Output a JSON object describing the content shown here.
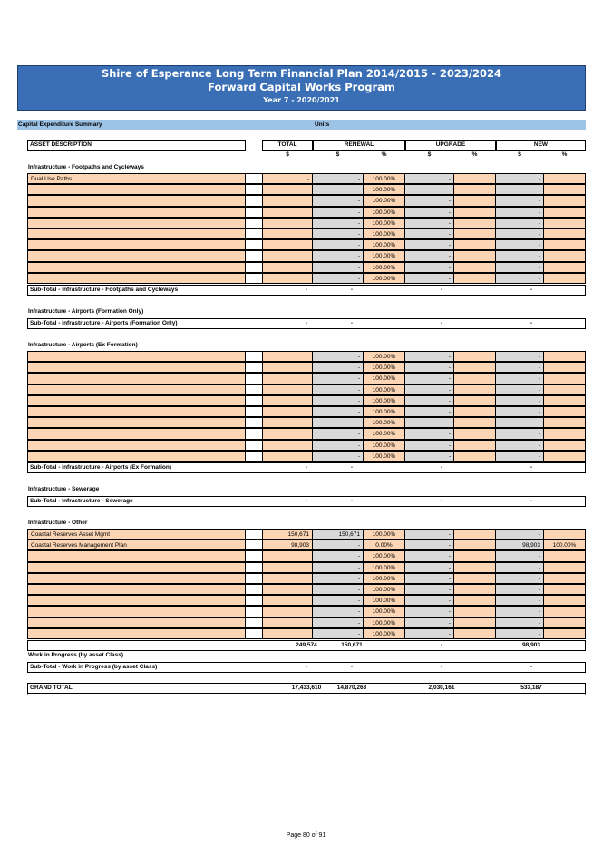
{
  "header": {
    "title": "Shire of Esperance Long Term Financial Plan 2014/2015 - 2023/2024",
    "subtitle": "Forward Capital Works Program",
    "year": "Year 7 - 2020/2021"
  },
  "capbar": {
    "label": "Capital Expenditure Summary",
    "units": "Units"
  },
  "columns": {
    "desc": "ASSET DESCRIPTION",
    "total": "TOTAL",
    "renewal": "RENEWAL",
    "upgrade": "UPGRADE",
    "new": "NEW",
    "dollar": "$",
    "pct": "%"
  },
  "sections": {
    "footpaths": {
      "title": "Infrastructure - Footpaths and Cycleways",
      "rows": [
        {
          "desc": "Dual Use Paths",
          "total": "-",
          "renewal": "-",
          "renewal_pct": "100.00%",
          "upgrade": "-",
          "upgrade_pct": "",
          "new": "-",
          "new_pct": ""
        },
        {
          "desc": "",
          "total": "",
          "renewal": "-",
          "renewal_pct": "100.00%",
          "upgrade": "-",
          "upgrade_pct": "",
          "new": "-",
          "new_pct": ""
        },
        {
          "desc": "",
          "total": "",
          "renewal": "-",
          "renewal_pct": "100.00%",
          "upgrade": "-",
          "upgrade_pct": "",
          "new": "-",
          "new_pct": ""
        },
        {
          "desc": "",
          "total": "",
          "renewal": "-",
          "renewal_pct": "100.00%",
          "upgrade": "-",
          "upgrade_pct": "",
          "new": "-",
          "new_pct": ""
        },
        {
          "desc": "",
          "total": "",
          "renewal": "-",
          "renewal_pct": "100.00%",
          "upgrade": "-",
          "upgrade_pct": "",
          "new": "-",
          "new_pct": ""
        },
        {
          "desc": "",
          "total": "",
          "renewal": "-",
          "renewal_pct": "100.00%",
          "upgrade": "-",
          "upgrade_pct": "",
          "new": "-",
          "new_pct": ""
        },
        {
          "desc": "",
          "total": "",
          "renewal": "-",
          "renewal_pct": "100.00%",
          "upgrade": "-",
          "upgrade_pct": "",
          "new": "-",
          "new_pct": ""
        },
        {
          "desc": "",
          "total": "",
          "renewal": "-",
          "renewal_pct": "100.00%",
          "upgrade": "-",
          "upgrade_pct": "",
          "new": "-",
          "new_pct": ""
        },
        {
          "desc": "",
          "total": "",
          "renewal": "-",
          "renewal_pct": "100.00%",
          "upgrade": "-",
          "upgrade_pct": "",
          "new": "-",
          "new_pct": ""
        },
        {
          "desc": "",
          "total": "",
          "renewal": "-",
          "renewal_pct": "100.00%",
          "upgrade": "-",
          "upgrade_pct": "",
          "new": "-",
          "new_pct": ""
        }
      ],
      "subtotal": {
        "label": "Sub-Total - Infrastructure - Footpaths and Cycleways",
        "total": "-",
        "renewal": "-",
        "upgrade": "-",
        "new": "-"
      }
    },
    "airports_formation": {
      "title": "Infrastructure - Airports (Formation Only)",
      "subtotal": {
        "label": "Sub-Total - Infrastructure - Airports (Formation Only)",
        "total": "-",
        "renewal": "-",
        "upgrade": "-",
        "new": "-"
      }
    },
    "airports_ex": {
      "title": "Infrastructure - Airports (Ex Formation)",
      "rows": [
        {
          "desc": "",
          "total": "",
          "renewal": "-",
          "renewal_pct": "100.00%",
          "upgrade": "-",
          "upgrade_pct": "",
          "new": "-",
          "new_pct": ""
        },
        {
          "desc": "",
          "total": "",
          "renewal": "-",
          "renewal_pct": "100.00%",
          "upgrade": "-",
          "upgrade_pct": "",
          "new": "-",
          "new_pct": ""
        },
        {
          "desc": "",
          "total": "",
          "renewal": "-",
          "renewal_pct": "100.00%",
          "upgrade": "-",
          "upgrade_pct": "",
          "new": "-",
          "new_pct": ""
        },
        {
          "desc": "",
          "total": "",
          "renewal": "-",
          "renewal_pct": "100.00%",
          "upgrade": "-",
          "upgrade_pct": "",
          "new": "-",
          "new_pct": ""
        },
        {
          "desc": "",
          "total": "",
          "renewal": "-",
          "renewal_pct": "100.00%",
          "upgrade": "-",
          "upgrade_pct": "",
          "new": "-",
          "new_pct": ""
        },
        {
          "desc": "",
          "total": "",
          "renewal": "-",
          "renewal_pct": "100.00%",
          "upgrade": "-",
          "upgrade_pct": "",
          "new": "-",
          "new_pct": ""
        },
        {
          "desc": "",
          "total": "",
          "renewal": "-",
          "renewal_pct": "100.00%",
          "upgrade": "-",
          "upgrade_pct": "",
          "new": "-",
          "new_pct": ""
        },
        {
          "desc": "",
          "total": "",
          "renewal": "-",
          "renewal_pct": "100.00%",
          "upgrade": "-",
          "upgrade_pct": "",
          "new": "-",
          "new_pct": ""
        },
        {
          "desc": "",
          "total": "",
          "renewal": "-",
          "renewal_pct": "100.00%",
          "upgrade": "-",
          "upgrade_pct": "",
          "new": "-",
          "new_pct": ""
        },
        {
          "desc": "",
          "total": "",
          "renewal": "-",
          "renewal_pct": "100.00%",
          "upgrade": "-",
          "upgrade_pct": "",
          "new": "-",
          "new_pct": ""
        }
      ],
      "subtotal": {
        "label": "Sub-Total - Infrastructure - Airports (Ex Formation)",
        "total": "-",
        "renewal": "-",
        "upgrade": "-",
        "new": "-"
      }
    },
    "sewerage": {
      "title": "Infrastructure - Sewerage",
      "subtotal": {
        "label": "Sub-Total - Infrastructure - Sewerage",
        "total": "-",
        "renewal": "-",
        "upgrade": "-",
        "new": "-"
      }
    },
    "other": {
      "title": "Infrastructure - Other",
      "rows": [
        {
          "desc": "Coastal Reserves Asset Mgmt",
          "total": "150,671",
          "renewal": "150,671",
          "renewal_pct": "100.00%",
          "upgrade": "-",
          "upgrade_pct": "",
          "new": "-",
          "new_pct": ""
        },
        {
          "desc": "Coastal Reserves Management Plan",
          "total": "98,903",
          "renewal": "-",
          "renewal_pct": "0.00%",
          "upgrade": "-",
          "upgrade_pct": "",
          "new": "98,903",
          "new_pct": "100.00%"
        },
        {
          "desc": "",
          "total": "",
          "renewal": "-",
          "renewal_pct": "100.00%",
          "upgrade": "-",
          "upgrade_pct": "",
          "new": "-",
          "new_pct": ""
        },
        {
          "desc": "",
          "total": "",
          "renewal": "-",
          "renewal_pct": "100.00%",
          "upgrade": "-",
          "upgrade_pct": "",
          "new": "-",
          "new_pct": ""
        },
        {
          "desc": "",
          "total": "",
          "renewal": "-",
          "renewal_pct": "100.00%",
          "upgrade": "-",
          "upgrade_pct": "",
          "new": "-",
          "new_pct": ""
        },
        {
          "desc": "",
          "total": "",
          "renewal": "-",
          "renewal_pct": "100.00%",
          "upgrade": "-",
          "upgrade_pct": "",
          "new": "-",
          "new_pct": ""
        },
        {
          "desc": "",
          "total": "",
          "renewal": "-",
          "renewal_pct": "100.00%",
          "upgrade": "-",
          "upgrade_pct": "",
          "new": "-",
          "new_pct": ""
        },
        {
          "desc": "",
          "total": "",
          "renewal": "-",
          "renewal_pct": "100.00%",
          "upgrade": "-",
          "upgrade_pct": "",
          "new": "-",
          "new_pct": ""
        },
        {
          "desc": "",
          "total": "",
          "renewal": "-",
          "renewal_pct": "100.00%",
          "upgrade": "-",
          "upgrade_pct": "",
          "new": "-",
          "new_pct": ""
        },
        {
          "desc": "",
          "total": "",
          "renewal": "-",
          "renewal_pct": "100.00%",
          "upgrade": "-",
          "upgrade_pct": "",
          "new": "-",
          "new_pct": ""
        }
      ],
      "subtotal": {
        "label": "",
        "total": "249,574",
        "renewal": "150,671",
        "upgrade": "-",
        "new": "98,903"
      }
    },
    "wip": {
      "title": "Work in Progress (by asset Class)",
      "subtotal": {
        "label": "Sub-Total - Work in Progress (by asset Class)",
        "total": "-",
        "renewal": "-",
        "upgrade": "-",
        "new": "-"
      }
    }
  },
  "grand_total": {
    "label": "GRAND TOTAL",
    "total": "17,433,610",
    "renewal": "14,870,263",
    "upgrade": "2,030,161",
    "new": "533,187"
  },
  "footer": {
    "page": "Page 80 of 91"
  }
}
